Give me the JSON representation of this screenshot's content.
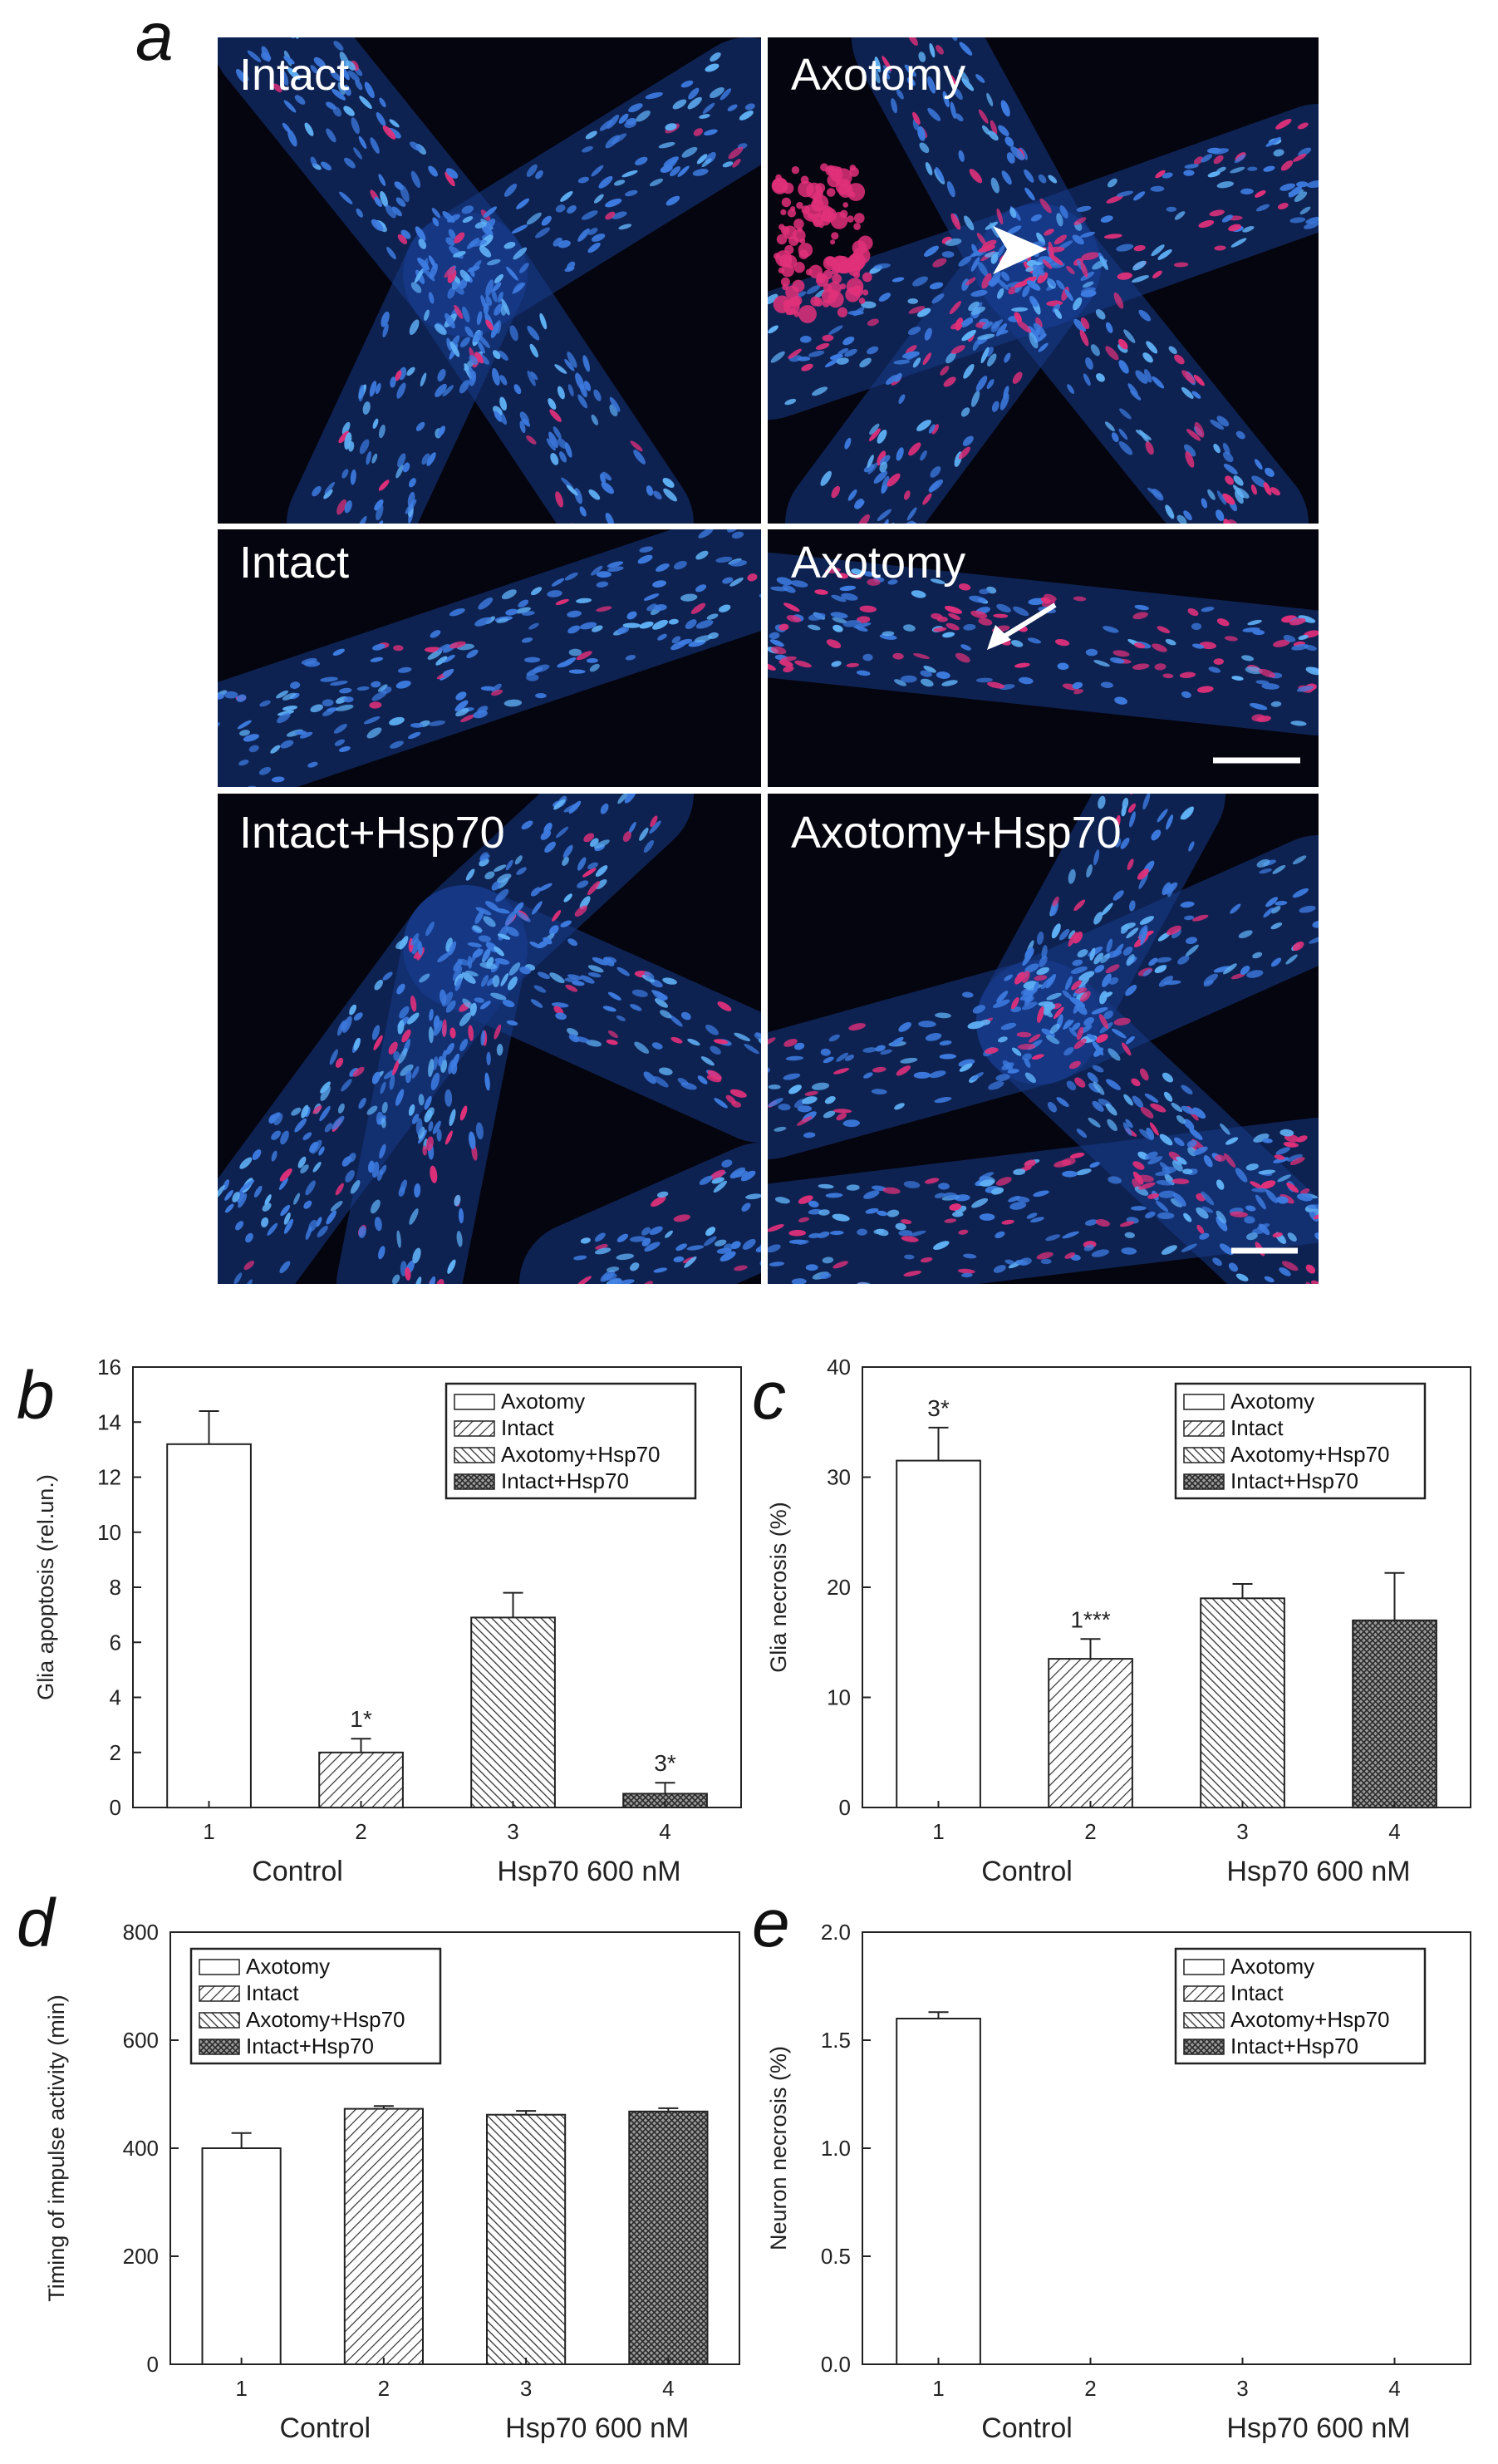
{
  "figure": {
    "panel_label_a": "a",
    "micrographs": [
      {
        "label": "Intact"
      },
      {
        "label": "Axotomy"
      },
      {
        "label": "Intact"
      },
      {
        "label": "Axotomy"
      },
      {
        "label": "Intact+Hsp70"
      },
      {
        "label": "Axotomy+Hsp70"
      }
    ]
  },
  "colors": {
    "nuclei_blue": "#3d7be0",
    "apoptotic_magenta": "#e0307a",
    "background": "#05050f",
    "bar_edge": "#222222"
  },
  "chart_data": [
    {
      "panel": "b",
      "type": "bar",
      "categories": [
        "1",
        "2",
        "3",
        "4"
      ],
      "group_labels": [
        "Control",
        "Hsp70 600 nM"
      ],
      "ylabel": "Glia apoptosis  (rel.un.)",
      "ylim": [
        0,
        16
      ],
      "yticks": [
        "0",
        "2",
        "4",
        "6",
        "8",
        "10",
        "12",
        "14",
        "16"
      ],
      "legend": [
        "Axotomy",
        "Intact",
        "Axotomy+Hsp70",
        "Intact+Hsp70"
      ],
      "legend_position": "top-right",
      "values": [
        13.2,
        2.0,
        6.9,
        0.5
      ],
      "errors": [
        1.2,
        0.5,
        0.9,
        0.4
      ],
      "annotations": [
        "",
        "1*",
        "",
        "3*"
      ]
    },
    {
      "panel": "c",
      "type": "bar",
      "categories": [
        "1",
        "2",
        "3",
        "4"
      ],
      "group_labels": [
        "Control",
        "Hsp70 600 nM"
      ],
      "ylabel": "Glia necrosis (%)",
      "ylim": [
        0,
        40
      ],
      "yticks": [
        "0",
        "10",
        "20",
        "30",
        "40"
      ],
      "legend": [
        "Axotomy",
        "Intact",
        "Axotomy+Hsp70",
        "Intact+Hsp70"
      ],
      "legend_position": "top-right",
      "values": [
        31.5,
        13.5,
        19.0,
        17.0
      ],
      "errors": [
        3.0,
        1.8,
        1.3,
        4.3
      ],
      "annotations": [
        "3*",
        "1***",
        "",
        ""
      ]
    },
    {
      "panel": "d",
      "type": "bar",
      "categories": [
        "1",
        "2",
        "3",
        "4"
      ],
      "group_labels": [
        "Control",
        "Hsp70 600 nM"
      ],
      "ylabel": "Timing of impulse activity  (min)",
      "ylim": [
        0,
        800
      ],
      "yticks": [
        "0",
        "200",
        "400",
        "600",
        "800"
      ],
      "legend": [
        "Axotomy",
        "Intact",
        "Axotomy+Hsp70",
        "Intact+Hsp70"
      ],
      "legend_position": "top-left",
      "values": [
        400,
        473,
        462,
        468
      ],
      "errors": [
        28,
        5,
        7,
        6
      ],
      "annotations": [
        "",
        "",
        "",
        ""
      ]
    },
    {
      "panel": "e",
      "type": "bar",
      "categories": [
        "1",
        "2",
        "3",
        "4"
      ],
      "group_labels": [
        "Control",
        "Hsp70 600 nM"
      ],
      "ylabel": "Neuron necrosis (%)",
      "ylim": [
        0,
        2.0
      ],
      "yticks": [
        "0.0",
        "0.5",
        "1.0",
        "1.5",
        "2.0"
      ],
      "legend": [
        "Axotomy",
        "Intact",
        "Axotomy+Hsp70",
        "Intact+Hsp70"
      ],
      "legend_position": "top-right",
      "values": [
        1.6,
        0,
        0,
        0
      ],
      "errors": [
        0.03,
        0,
        0,
        0
      ],
      "annotations": [
        "",
        "",
        "",
        ""
      ]
    }
  ]
}
